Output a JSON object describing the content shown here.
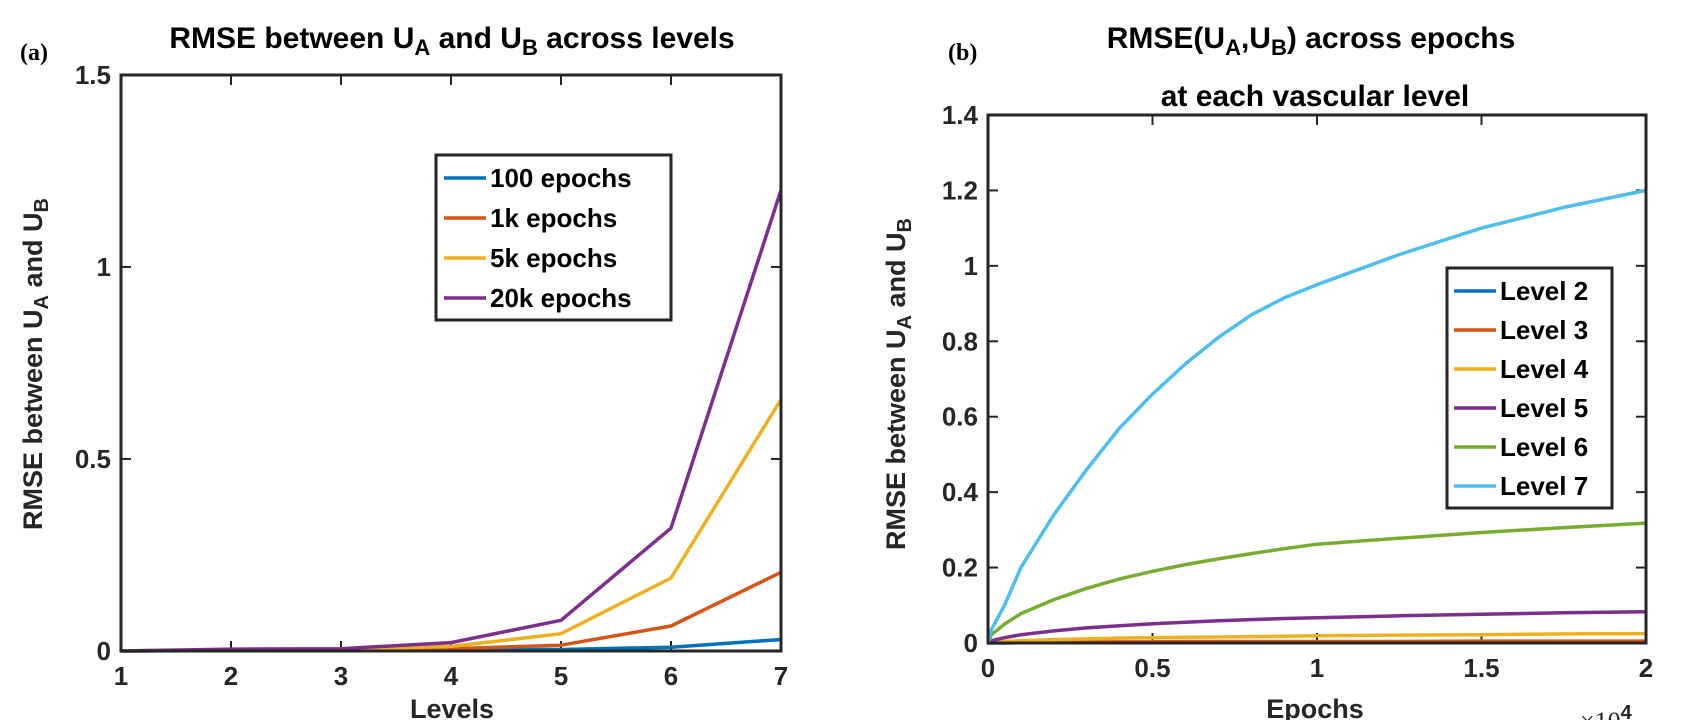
{
  "chart_data": [
    {
      "panel": "(a)",
      "type": "line",
      "title_parts": [
        "RMSE between U",
        "A",
        " and U",
        "B",
        " across levels"
      ],
      "xlabel": "Levels",
      "ylabel_parts": [
        "RMSE between U",
        "A",
        " and U",
        "B"
      ],
      "xlim": [
        1,
        7
      ],
      "ylim": [
        0,
        1.5
      ],
      "xticks": [
        1,
        2,
        3,
        4,
        5,
        6,
        7
      ],
      "yticks": [
        0,
        0.5,
        1,
        1.5
      ],
      "ytick_labels": [
        "0",
        "0.5",
        "1",
        "1.5"
      ],
      "grid": false,
      "legend_position": "upper-right",
      "x": [
        1,
        2,
        3,
        4,
        5,
        6,
        7
      ],
      "series": [
        {
          "name": "100 epochs",
          "color": "#0072BD",
          "values": [
            0,
            0.001,
            0.002,
            0.003,
            0.004,
            0.01,
            0.03
          ]
        },
        {
          "name": "1k epochs",
          "color": "#D95319",
          "values": [
            0,
            0.002,
            0.003,
            0.006,
            0.015,
            0.065,
            0.205
          ]
        },
        {
          "name": "5k epochs",
          "color": "#EDB120",
          "values": [
            0,
            0.003,
            0.004,
            0.012,
            0.045,
            0.19,
            0.655
          ]
        },
        {
          "name": "20k epochs",
          "color": "#7E2F8E",
          "values": [
            0,
            0.005,
            0.006,
            0.022,
            0.08,
            0.32,
            1.2
          ]
        }
      ]
    },
    {
      "panel": "(b)",
      "type": "line",
      "title_line1_parts": [
        "RMSE(U",
        "A",
        ",U",
        "B",
        ") across epochs"
      ],
      "title_line2": "at each vascular level",
      "xlabel": "Epochs",
      "x_exponent_base": "×10",
      "x_exponent_power": "4",
      "ylabel_parts": [
        "RMSE between U",
        "A",
        " and U",
        "B"
      ],
      "xlim": [
        0,
        2
      ],
      "ylim": [
        0,
        1.4
      ],
      "xticks": [
        0,
        0.5,
        1,
        1.5,
        2
      ],
      "xtick_labels": [
        "0",
        "0.5",
        "1",
        "1.5",
        "2"
      ],
      "yticks": [
        0,
        0.2,
        0.4,
        0.6,
        0.8,
        1,
        1.2,
        1.4
      ],
      "ytick_labels": [
        "0",
        "0.2",
        "0.4",
        "0.6",
        "0.8",
        "1",
        "1.2",
        "1.4"
      ],
      "grid": false,
      "legend_position": "right",
      "x": [
        0,
        0.01,
        0.05,
        0.1,
        0.2,
        0.3,
        0.4,
        0.5,
        0.6,
        0.7,
        0.8,
        0.9,
        1.0,
        1.25,
        1.5,
        1.75,
        2.0
      ],
      "series": [
        {
          "name": "Level  2",
          "color": "#0072BD",
          "values": [
            0,
            0,
            0,
            0.001,
            0.001,
            0.001,
            0.001,
            0.001,
            0.001,
            0.001,
            0.001,
            0.001,
            0.001,
            0.001,
            0.001,
            0.001,
            0.001
          ]
        },
        {
          "name": "Level  3",
          "color": "#D95319",
          "values": [
            0,
            0.001,
            0.001,
            0.002,
            0.002,
            0.003,
            0.003,
            0.003,
            0.004,
            0.004,
            0.004,
            0.004,
            0.004,
            0.004,
            0.005,
            0.005,
            0.005
          ]
        },
        {
          "name": "Level  4",
          "color": "#EDB120",
          "values": [
            0,
            0.002,
            0.004,
            0.006,
            0.009,
            0.011,
            0.013,
            0.014,
            0.015,
            0.016,
            0.017,
            0.018,
            0.019,
            0.021,
            0.022,
            0.024,
            0.025
          ]
        },
        {
          "name": "Level  5",
          "color": "#7E2F8E",
          "values": [
            0,
            0.006,
            0.014,
            0.022,
            0.032,
            0.04,
            0.046,
            0.051,
            0.055,
            0.059,
            0.062,
            0.065,
            0.067,
            0.072,
            0.076,
            0.08,
            0.083
          ]
        },
        {
          "name": "Level  6",
          "color": "#77AC30",
          "values": [
            0,
            0.022,
            0.05,
            0.078,
            0.115,
            0.145,
            0.17,
            0.19,
            0.208,
            0.223,
            0.237,
            0.25,
            0.262,
            0.278,
            0.293,
            0.306,
            0.318
          ]
        },
        {
          "name": "Level  7",
          "color": "#4DBEEE",
          "values": [
            0,
            0.035,
            0.1,
            0.2,
            0.34,
            0.46,
            0.57,
            0.66,
            0.74,
            0.81,
            0.87,
            0.915,
            0.95,
            1.03,
            1.1,
            1.155,
            1.2
          ]
        }
      ]
    }
  ]
}
